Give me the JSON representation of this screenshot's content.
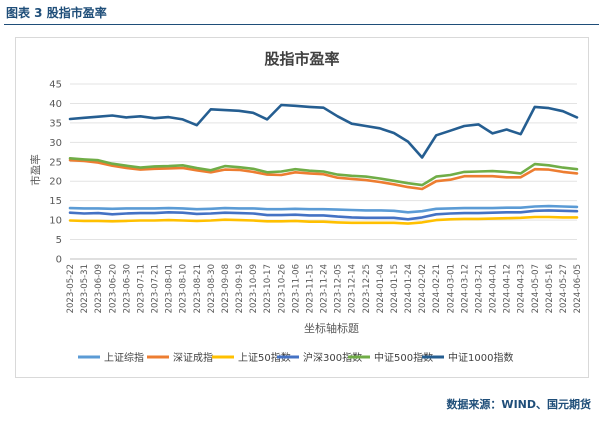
{
  "header": {
    "figure_label": "图表 3  股指市盈率"
  },
  "source": "数据来源：WIND、国元期货",
  "colors": {
    "上证综指": "#5b9bd5",
    "深证成指": "#ed7d31",
    "上证50指数": "#ffc000",
    "沪深300指数": "#4472c4",
    "中证500指数": "#70ad47",
    "中证1000指数": "#255e91"
  },
  "chart_data": {
    "type": "line",
    "title": "股指市盈率",
    "xlabel": "坐标轴标题",
    "ylabel": "市盈率",
    "ylim": [
      0,
      45
    ],
    "yticks": [
      0,
      5,
      10,
      15,
      20,
      25,
      30,
      35,
      40,
      45
    ],
    "grid": "horizontal",
    "legend_position": "bottom",
    "x": [
      "2023-05-22",
      "2023-05-31",
      "2023-06-09",
      "2023-06-20",
      "2023-06-30",
      "2023-07-11",
      "2023-07-21",
      "2023-08-01",
      "2023-08-10",
      "2023-08-21",
      "2023-08-30",
      "2023-09-08",
      "2023-09-19",
      "2023-10-09",
      "2023-10-17",
      "2023-10-26",
      "2023-11-06",
      "2023-11-15",
      "2023-11-24",
      "2023-12-05",
      "2023-12-14",
      "2023-12-25",
      "2024-01-04",
      "2024-01-15",
      "2024-01-24",
      "2024-02-02",
      "2024-02-21",
      "2024-03-01",
      "2024-03-12",
      "2024-03-21",
      "2024-04-01",
      "2024-04-12",
      "2024-04-23",
      "2024-05-07",
      "2024-05-16",
      "2024-05-27",
      "2024-06-05"
    ],
    "series": [
      {
        "name": "上证综指",
        "values": [
          13.1,
          13.0,
          13.0,
          12.9,
          13.0,
          13.0,
          13.0,
          13.1,
          13.0,
          12.8,
          12.9,
          13.1,
          13.0,
          13.0,
          12.8,
          12.8,
          12.9,
          12.8,
          12.8,
          12.7,
          12.6,
          12.5,
          12.5,
          12.4,
          12.0,
          12.3,
          12.9,
          13.0,
          13.1,
          13.1,
          13.1,
          13.2,
          13.2,
          13.5,
          13.6,
          13.5,
          13.4
        ]
      },
      {
        "name": "深证成指",
        "values": [
          25.4,
          25.2,
          24.8,
          24.0,
          23.4,
          23.0,
          23.2,
          23.3,
          23.4,
          22.8,
          22.3,
          23.0,
          22.9,
          22.4,
          21.7,
          21.6,
          22.3,
          22.0,
          21.8,
          20.9,
          20.6,
          20.3,
          19.8,
          19.2,
          18.5,
          18.0,
          20.0,
          20.4,
          21.3,
          21.3,
          21.3,
          21.0,
          21.0,
          23.1,
          23.0,
          22.4,
          22.0
        ]
      },
      {
        "name": "上证50指数",
        "values": [
          9.9,
          9.8,
          9.8,
          9.7,
          9.8,
          9.9,
          9.9,
          10.0,
          9.9,
          9.8,
          9.9,
          10.1,
          10.0,
          9.9,
          9.7,
          9.7,
          9.8,
          9.6,
          9.6,
          9.4,
          9.3,
          9.3,
          9.3,
          9.3,
          9.1,
          9.4,
          10.0,
          10.2,
          10.3,
          10.3,
          10.4,
          10.5,
          10.6,
          10.8,
          10.8,
          10.7,
          10.7
        ]
      },
      {
        "name": "沪深300指数",
        "values": [
          11.9,
          11.7,
          11.8,
          11.5,
          11.7,
          11.8,
          11.8,
          12.0,
          11.9,
          11.6,
          11.7,
          11.9,
          11.8,
          11.7,
          11.3,
          11.3,
          11.4,
          11.2,
          11.2,
          10.9,
          10.7,
          10.6,
          10.6,
          10.6,
          10.2,
          10.7,
          11.5,
          11.7,
          11.8,
          11.8,
          11.9,
          12.0,
          12.0,
          12.4,
          12.5,
          12.4,
          12.3
        ]
      },
      {
        "name": "中证500指数",
        "values": [
          25.9,
          25.6,
          25.4,
          24.5,
          24.0,
          23.5,
          23.8,
          23.9,
          24.1,
          23.4,
          22.8,
          23.9,
          23.6,
          23.2,
          22.3,
          22.5,
          23.1,
          22.7,
          22.5,
          21.7,
          21.4,
          21.2,
          20.7,
          20.1,
          19.5,
          19.0,
          21.2,
          21.6,
          22.4,
          22.5,
          22.6,
          22.4,
          22.0,
          24.4,
          24.1,
          23.5,
          23.1
        ]
      },
      {
        "name": "中证1000指数",
        "values": [
          36.0,
          36.3,
          36.6,
          36.9,
          36.4,
          36.7,
          36.2,
          36.5,
          35.9,
          34.4,
          38.5,
          38.3,
          38.1,
          37.6,
          35.9,
          39.6,
          39.4,
          39.1,
          38.9,
          36.7,
          34.8,
          34.2,
          33.6,
          32.4,
          30.2,
          26.1,
          31.8,
          33.0,
          34.2,
          34.6,
          32.3,
          33.3,
          32.1,
          39.1,
          38.8,
          38.0,
          36.4
        ]
      }
    ]
  }
}
